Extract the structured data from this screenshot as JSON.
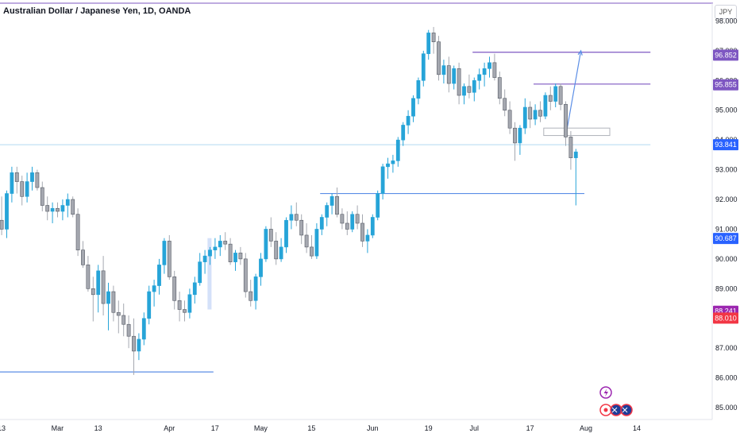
{
  "header": {
    "title": "Australian Dollar / Japanese Yen, 1D, OANDA",
    "currency": "JPY"
  },
  "chart_data": {
    "type": "candlestick",
    "title": "Australian Dollar / Japanese Yen, 1D, OANDA",
    "yaxis_unit": "JPY",
    "ylim": [
      84.6,
      98.6
    ],
    "y_ticks": [
      85.0,
      86.0,
      87.0,
      88.0,
      89.0,
      90.0,
      91.0,
      92.0,
      93.0,
      94.0,
      95.0,
      96.0,
      97.0,
      98.0
    ],
    "x_ticks": [
      {
        "label": "13",
        "index": 0
      },
      {
        "label": "Mar",
        "index": 11
      },
      {
        "label": "13",
        "index": 19
      },
      {
        "label": "Apr",
        "index": 33
      },
      {
        "label": "17",
        "index": 42
      },
      {
        "label": "May",
        "index": 51
      },
      {
        "label": "15",
        "index": 61
      },
      {
        "label": "Jun",
        "index": 73
      },
      {
        "label": "19",
        "index": 84
      },
      {
        "label": "Jul",
        "index": 93
      },
      {
        "label": "17",
        "index": 104
      },
      {
        "label": "Aug",
        "index": 115
      },
      {
        "label": "14",
        "index": 125
      }
    ],
    "candles": [
      [
        91.3,
        92.1,
        90.8,
        91.0
      ],
      [
        91.0,
        92.3,
        90.7,
        92.2
      ],
      [
        92.2,
        93.1,
        91.9,
        92.9
      ],
      [
        92.9,
        93.1,
        92.2,
        92.6
      ],
      [
        92.6,
        92.8,
        91.8,
        92.1
      ],
      [
        92.1,
        92.9,
        91.9,
        92.6
      ],
      [
        92.6,
        93.1,
        92.3,
        92.9
      ],
      [
        92.9,
        93.0,
        92.3,
        92.4
      ],
      [
        92.4,
        92.6,
        91.6,
        91.8
      ],
      [
        91.8,
        92.1,
        91.3,
        91.6
      ],
      [
        91.6,
        91.9,
        91.2,
        91.7
      ],
      [
        91.7,
        91.9,
        91.4,
        91.6
      ],
      [
        91.6,
        92.0,
        91.3,
        91.8
      ],
      [
        91.8,
        92.2,
        91.4,
        92.0
      ],
      [
        92.0,
        92.1,
        91.4,
        91.5
      ],
      [
        91.5,
        91.7,
        90.1,
        90.3
      ],
      [
        90.3,
        90.6,
        89.7,
        89.8
      ],
      [
        89.8,
        90.1,
        88.9,
        89.0
      ],
      [
        89.0,
        89.4,
        87.9,
        88.8
      ],
      [
        88.8,
        89.8,
        88.2,
        89.6
      ],
      [
        89.6,
        90.1,
        88.1,
        88.5
      ],
      [
        88.5,
        89.2,
        87.6,
        88.9
      ],
      [
        88.9,
        89.1,
        87.9,
        88.2
      ],
      [
        88.2,
        88.6,
        87.5,
        88.1
      ],
      [
        88.1,
        88.5,
        87.4,
        87.8
      ],
      [
        87.8,
        88.1,
        87.0,
        87.4
      ],
      [
        87.4,
        88.0,
        86.1,
        86.9
      ],
      [
        86.9,
        87.5,
        86.6,
        87.3
      ],
      [
        87.3,
        88.2,
        87.1,
        88.0
      ],
      [
        88.0,
        89.1,
        87.8,
        88.9
      ],
      [
        88.9,
        89.3,
        88.4,
        89.1
      ],
      [
        89.1,
        90.0,
        88.8,
        89.8
      ],
      [
        89.8,
        90.7,
        89.5,
        90.6
      ],
      [
        90.6,
        90.8,
        89.3,
        89.4
      ],
      [
        89.4,
        89.6,
        88.3,
        88.6
      ],
      [
        88.6,
        88.9,
        87.9,
        88.3
      ],
      [
        88.3,
        88.6,
        87.9,
        88.2
      ],
      [
        88.2,
        89.0,
        88.0,
        88.8
      ],
      [
        88.8,
        89.4,
        88.5,
        89.2
      ],
      [
        89.2,
        90.2,
        89.1,
        89.9
      ],
      [
        89.9,
        90.3,
        89.5,
        90.1
      ],
      [
        90.1,
        90.4,
        89.8,
        90.3
      ],
      [
        90.3,
        90.7,
        90.0,
        90.4
      ],
      [
        90.4,
        90.8,
        90.1,
        90.6
      ],
      [
        90.6,
        90.9,
        90.3,
        90.5
      ],
      [
        90.5,
        90.7,
        89.8,
        89.9
      ],
      [
        89.9,
        90.3,
        89.6,
        90.2
      ],
      [
        90.2,
        90.4,
        89.8,
        90.0
      ],
      [
        90.0,
        90.2,
        88.7,
        88.9
      ],
      [
        88.9,
        89.3,
        88.4,
        88.6
      ],
      [
        88.6,
        89.5,
        88.3,
        89.4
      ],
      [
        89.4,
        90.2,
        89.1,
        90.0
      ],
      [
        90.0,
        91.1,
        89.9,
        91.0
      ],
      [
        91.0,
        91.4,
        90.4,
        90.6
      ],
      [
        90.6,
        90.9,
        89.8,
        90.0
      ],
      [
        90.0,
        90.7,
        89.9,
        90.4
      ],
      [
        90.4,
        91.4,
        90.2,
        91.3
      ],
      [
        91.3,
        91.8,
        91.0,
        91.5
      ],
      [
        91.5,
        91.9,
        91.1,
        91.3
      ],
      [
        91.3,
        91.5,
        90.5,
        90.8
      ],
      [
        90.8,
        91.2,
        90.2,
        90.4
      ],
      [
        90.4,
        90.8,
        90.0,
        90.1
      ],
      [
        90.1,
        91.2,
        90.0,
        91.0
      ],
      [
        91.0,
        91.5,
        90.8,
        91.4
      ],
      [
        91.4,
        91.9,
        91.1,
        91.8
      ],
      [
        91.8,
        92.2,
        91.5,
        92.1
      ],
      [
        92.1,
        92.4,
        91.4,
        91.5
      ],
      [
        91.5,
        91.7,
        91.0,
        91.2
      ],
      [
        91.2,
        91.6,
        90.8,
        91.0
      ],
      [
        91.0,
        91.6,
        90.9,
        91.5
      ],
      [
        91.5,
        91.8,
        91.0,
        91.2
      ],
      [
        91.2,
        91.5,
        90.4,
        90.6
      ],
      [
        90.6,
        91.0,
        90.2,
        90.8
      ],
      [
        90.8,
        91.5,
        90.7,
        91.4
      ],
      [
        91.4,
        92.3,
        91.3,
        92.2
      ],
      [
        92.2,
        93.2,
        92.0,
        93.1
      ],
      [
        93.1,
        93.4,
        92.7,
        93.2
      ],
      [
        93.2,
        93.5,
        92.9,
        93.3
      ],
      [
        93.3,
        94.1,
        93.1,
        94.0
      ],
      [
        94.0,
        94.6,
        93.8,
        94.5
      ],
      [
        94.5,
        95.0,
        94.2,
        94.8
      ],
      [
        94.8,
        95.5,
        94.6,
        95.4
      ],
      [
        95.4,
        96.1,
        95.2,
        96.0
      ],
      [
        96.0,
        97.0,
        95.8,
        96.9
      ],
      [
        96.9,
        97.7,
        96.7,
        97.6
      ],
      [
        97.6,
        97.8,
        96.9,
        97.3
      ],
      [
        97.3,
        97.5,
        96.0,
        96.2
      ],
      [
        96.2,
        96.7,
        95.9,
        96.5
      ],
      [
        96.5,
        96.8,
        95.6,
        95.9
      ],
      [
        95.9,
        96.5,
        95.7,
        96.4
      ],
      [
        96.4,
        96.6,
        95.2,
        95.5
      ],
      [
        95.5,
        95.9,
        95.2,
        95.8
      ],
      [
        95.8,
        96.2,
        95.4,
        95.6
      ],
      [
        95.6,
        96.1,
        95.3,
        96.0
      ],
      [
        96.0,
        96.4,
        95.7,
        96.2
      ],
      [
        96.2,
        96.6,
        95.8,
        96.4
      ],
      [
        96.4,
        96.8,
        96.1,
        96.6
      ],
      [
        96.6,
        96.9,
        96.0,
        96.1
      ],
      [
        96.1,
        96.3,
        95.2,
        95.4
      ],
      [
        95.4,
        95.7,
        94.8,
        95.0
      ],
      [
        95.0,
        95.3,
        94.2,
        94.4
      ],
      [
        94.4,
        94.6,
        93.3,
        93.9
      ],
      [
        93.9,
        94.5,
        93.5,
        94.4
      ],
      [
        94.4,
        95.4,
        94.2,
        95.1
      ],
      [
        95.1,
        95.3,
        94.4,
        94.7
      ],
      [
        94.7,
        95.2,
        94.5,
        95.0
      ],
      [
        95.0,
        95.3,
        94.6,
        94.8
      ],
      [
        94.8,
        95.6,
        94.7,
        95.5
      ],
      [
        95.5,
        95.8,
        95.0,
        95.3
      ],
      [
        95.3,
        95.9,
        95.1,
        95.8
      ],
      [
        95.8,
        95.9,
        95.0,
        95.2
      ],
      [
        95.2,
        95.3,
        93.8,
        94.1
      ],
      [
        94.1,
        94.3,
        93.0,
        93.4
      ],
      [
        93.4,
        93.7,
        91.8,
        93.6
      ]
    ],
    "horizontal_lines": [
      {
        "name": "support-line-low",
        "y": 86.2,
        "x_start_index": 0,
        "x_end_index": 42
      },
      {
        "name": "support-line-mid",
        "y": 92.2,
        "x_start_index": 63,
        "x_end_index": 115
      },
      {
        "name": "resistance-line-high",
        "y": 96.95,
        "x_start_index": 93,
        "x_end_index": 128
      },
      {
        "name": "resistance-line-mid",
        "y": 95.88,
        "x_start_index": 105,
        "x_end_index": 128
      },
      {
        "name": "current-price-line",
        "y": 93.841,
        "x_start_index": 0,
        "x_end_index": 128
      }
    ],
    "arrow": {
      "from_index": 111,
      "from_y": 94.1,
      "to_index": 114,
      "to_y": 97.0
    },
    "zone_box": {
      "x_start_index": 107,
      "x_end_index": 120,
      "y_low": 94.15,
      "y_high": 94.4
    },
    "price_labels": [
      {
        "name": "price-label-96852",
        "value": "96.852",
        "y": 96.852,
        "color": "#7e57c2"
      },
      {
        "name": "price-label-95855",
        "value": "95.855",
        "y": 95.855,
        "color": "#7e57c2"
      },
      {
        "name": "price-label-93841",
        "value": "93.841",
        "y": 93.841,
        "color": "#2962ff"
      },
      {
        "name": "price-label-90687",
        "value": "90.687",
        "y": 90.687,
        "color": "#2962ff"
      },
      {
        "name": "price-label-88241",
        "value": "88.241",
        "y": 88.241,
        "color": "#9c27b0"
      },
      {
        "name": "price-label-88010",
        "value": "88.010",
        "y": 88.01,
        "color": "#f23645"
      }
    ],
    "colors": {
      "up": "#26a4d8",
      "down": "#a5a8b0",
      "line_blue": "#5b8ee6",
      "line_purple": "#7e57c2",
      "current_price_line": "#b2d9f0",
      "top_border": "#7e57c2"
    }
  }
}
